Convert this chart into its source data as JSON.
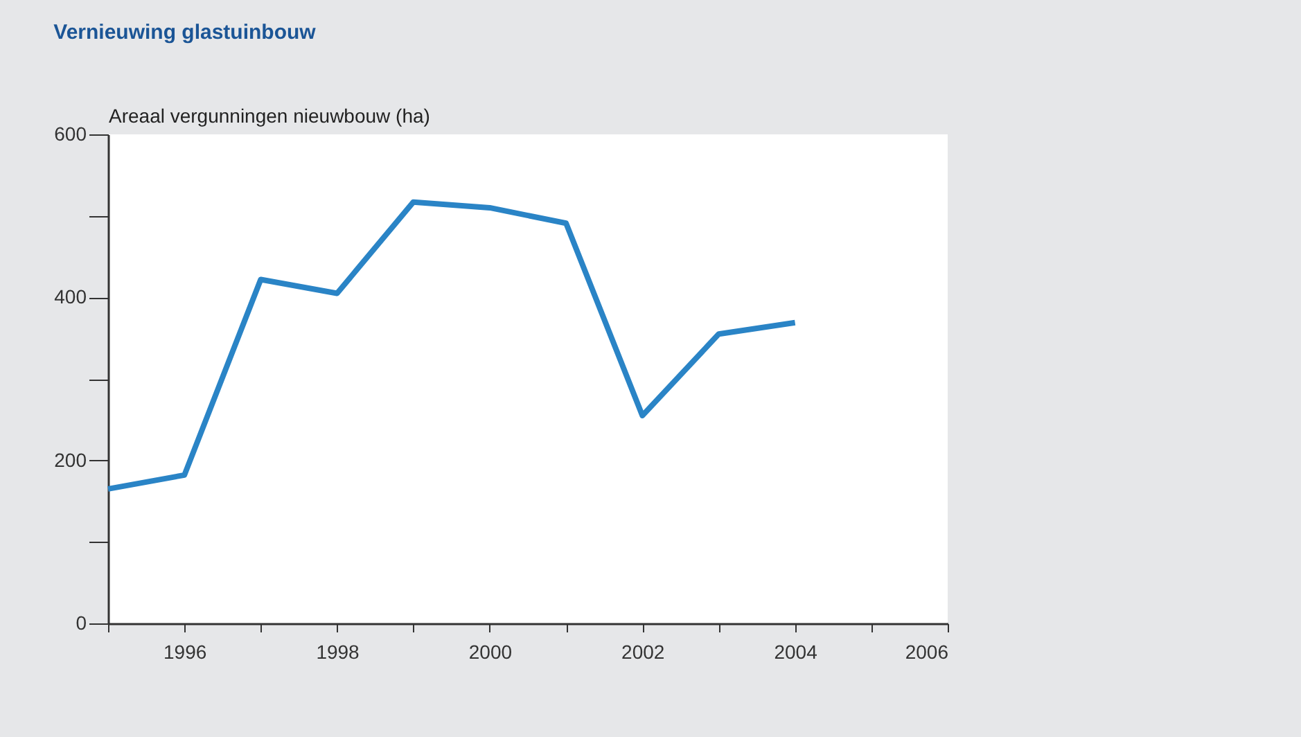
{
  "chart_data": {
    "type": "line",
    "title": "Vernieuwing glastuinbouw",
    "ylabel": "Areaal vergunningen nieuwbouw (ha)",
    "x": [
      1995,
      1996,
      1997,
      1998,
      1999,
      2000,
      2001,
      2002,
      2003,
      2004
    ],
    "series": [
      {
        "color": "#2a84c6",
        "values": [
          165,
          182,
          422,
          405,
          517,
          510,
          491,
          255,
          355,
          369
        ]
      }
    ],
    "xlim": [
      1995,
      2006
    ],
    "xticks": [
      {
        "value": 1995,
        "label": null
      },
      1996,
      {
        "value": 1997,
        "label": null
      },
      1998,
      {
        "value": 1999,
        "label": null
      },
      2000,
      {
        "value": 2001,
        "label": null
      },
      2002,
      {
        "value": 2003,
        "label": null
      },
      2004,
      {
        "value": 2005,
        "label": null
      },
      2006
    ],
    "ylim": [
      0,
      600
    ],
    "yticks": [
      0,
      {
        "value": 100,
        "label": null
      },
      200,
      {
        "value": 300,
        "label": null
      },
      400,
      {
        "value": 500,
        "label": null
      },
      600
    ],
    "grid": false,
    "legend": false,
    "marker": "none",
    "line_style": "solid"
  }
}
